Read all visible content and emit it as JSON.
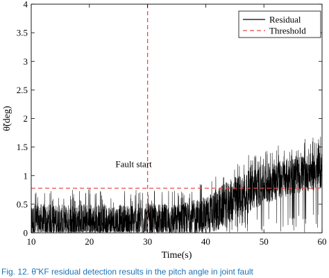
{
  "chart_data": {
    "type": "line",
    "title": "",
    "xlabel": "Time(s)",
    "ylabel": "θ̃(deg)",
    "xlim": [
      10,
      60
    ],
    "ylim": [
      0,
      4
    ],
    "xticks": [
      10,
      20,
      30,
      40,
      50,
      60
    ],
    "yticks": [
      0,
      0.5,
      1,
      1.5,
      2,
      2.5,
      3,
      3.5,
      4
    ],
    "xtick_labels": [
      "10",
      "20",
      "30",
      "40",
      "50",
      "60"
    ],
    "ytick_labels": [
      "0",
      "0.5",
      "1",
      "1.5",
      "2",
      "2.5",
      "3",
      "3.5",
      "4"
    ],
    "grid": false,
    "legend_position": "top-right",
    "series": [
      {
        "name": "Residual",
        "style": "solid",
        "color": "#000000",
        "envelope": {
          "x": [
            10,
            15,
            20,
            25,
            30,
            35,
            40,
            42,
            45,
            50,
            55,
            60
          ],
          "mean": [
            0.18,
            0.18,
            0.18,
            0.18,
            0.18,
            0.2,
            0.3,
            0.4,
            0.6,
            0.85,
            1.0,
            1.1
          ],
          "max": [
            0.8,
            0.75,
            0.8,
            0.75,
            0.8,
            0.75,
            0.9,
            1.1,
            1.3,
            1.5,
            1.6,
            1.7
          ]
        }
      },
      {
        "name": "Threshold",
        "style": "dashed",
        "color": "#e8484a",
        "x": [
          10,
          60
        ],
        "values": [
          0.78,
          0.78
        ]
      }
    ],
    "annotations": [
      {
        "text": "Fault start",
        "x": 30,
        "y": 1.15,
        "vline_x": 30,
        "vline_color": "#e8484a",
        "vline_style": "dashed"
      }
    ]
  },
  "caption": {
    "text": "Fig. 12. θ̃ KF residual detection results in the pitch angle in joint fault"
  }
}
